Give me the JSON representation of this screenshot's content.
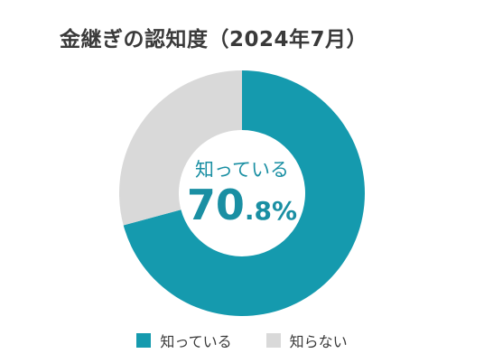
{
  "title": "金継ぎの認知度（2024年7月）",
  "center": {
    "label": "知っている",
    "value_main": "70",
    "value_decimal": ".8%"
  },
  "colors": {
    "known": "#159aae",
    "unknown": "#d9d9d9"
  },
  "chart_data": {
    "type": "pie",
    "title": "金継ぎの認知度（2024年7月）",
    "categories": [
      "知っている",
      "知らない"
    ],
    "values": [
      70.8,
      29.2
    ],
    "unit": "%",
    "legend": "bottom"
  }
}
